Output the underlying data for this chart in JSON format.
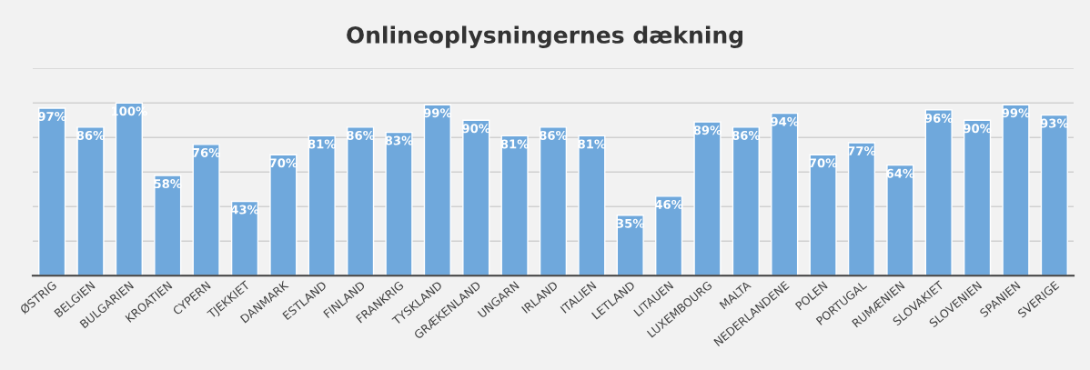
{
  "chart_data": {
    "type": "bar",
    "title": "Onlineoplysningernes dækning",
    "categories": [
      "ØSTRIG",
      "BELGIEN",
      "BULGARIEN",
      "KROATIEN",
      "CYPERN",
      "TJEKKIET",
      "DANMARK",
      "ESTLAND",
      "FINLAND",
      "FRANKRIG",
      "TYSKLAND",
      "GRÆKENLAND",
      "UNGARN",
      "IRLAND",
      "ITALIEN",
      "LETLAND",
      "LITAUEN",
      "LUXEMBOURG",
      "MALTA",
      "NEDERLANDENE",
      "POLEN",
      "PORTUGAL",
      "RUMÆNIEN",
      "SLOVAKIET",
      "SLOVENIEN",
      "SPANIEN",
      "SVERIGE"
    ],
    "values": [
      97,
      86,
      100,
      58,
      76,
      43,
      70,
      81,
      86,
      83,
      99,
      90,
      81,
      86,
      81,
      35,
      46,
      89,
      86,
      94,
      70,
      77,
      64,
      96,
      90,
      99,
      93
    ],
    "value_labels": [
      "97%",
      "86%",
      "100%",
      "58%",
      "76%",
      "43%",
      "70%",
      "81%",
      "86%",
      "83%",
      "99%",
      "90%",
      "81%",
      "86%",
      "81%",
      "35%",
      "46%",
      "89%",
      "86%",
      "94%",
      "70%",
      "77%",
      "64%",
      "96%",
      "90%",
      "99%",
      "93%"
    ],
    "color": "#6fa8dc",
    "ylim": [
      0,
      120
    ],
    "yticks": [
      {
        "value": 0,
        "label": null
      },
      {
        "value": 20,
        "label": null
      },
      {
        "value": 40,
        "label": null
      },
      {
        "value": 60,
        "label": null
      },
      {
        "value": 80,
        "label": null
      },
      {
        "value": 100,
        "label": null
      },
      {
        "value": 120,
        "label": null
      }
    ],
    "tick_labels": "x",
    "grid": "y",
    "legend": false
  }
}
